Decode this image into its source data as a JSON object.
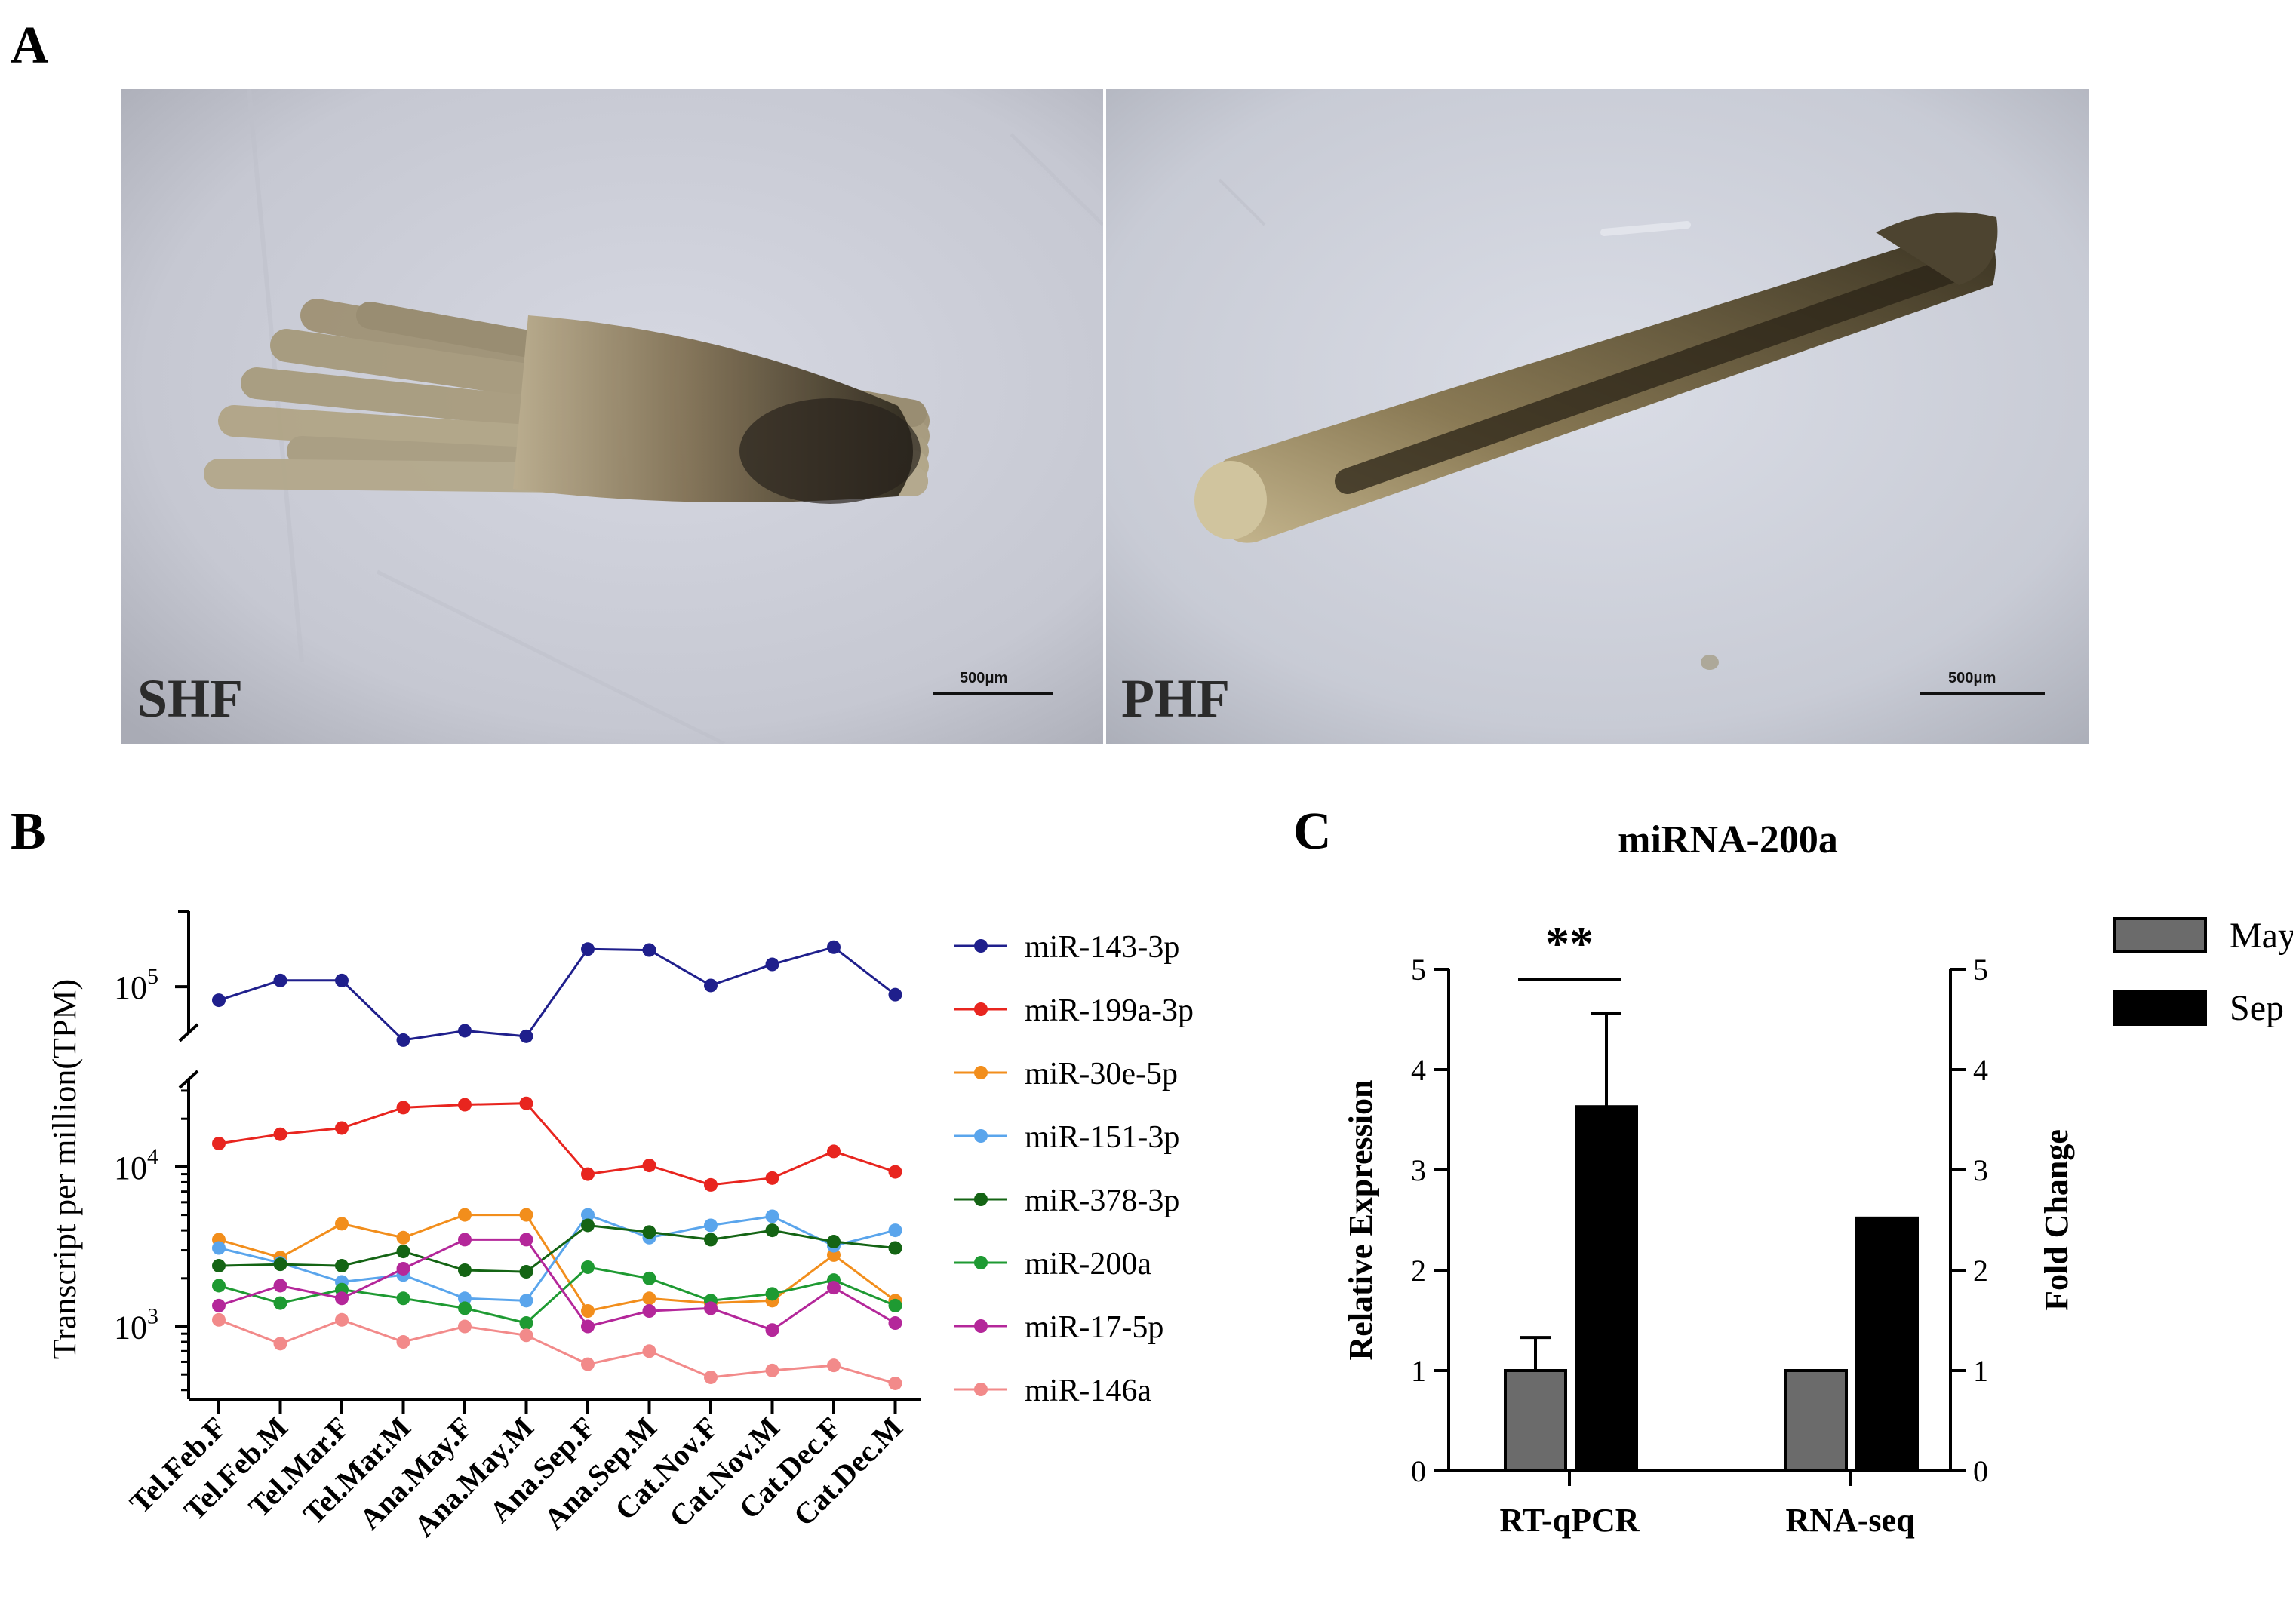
{
  "panel_a": {
    "letter": "A",
    "images": [
      {
        "label": "SHF",
        "scale_text": "500μm"
      },
      {
        "label": "PHF",
        "scale_text": "500μm"
      }
    ]
  },
  "panel_b": {
    "letter": "B"
  },
  "panel_c": {
    "letter": "C"
  },
  "chart_data": [
    {
      "type": "line",
      "panel": "B",
      "ylabel": "Transcript per million(TPM)",
      "yscale": "log",
      "ylim": [
        200,
        300000
      ],
      "y_broken_axis": true,
      "y_ticks": [
        {
          "base": "10",
          "exp": "5",
          "value": 100000
        },
        {
          "base": "10",
          "exp": "4",
          "value": 10000
        },
        {
          "base": "10",
          "exp": "3",
          "value": 1000
        }
      ],
      "categories": [
        "Tel.Feb.F",
        "Tel.Feb.M",
        "Tel.Mar.F",
        "Tel.Mar.M",
        "Ana.May.F",
        "Ana.May.M",
        "Ana.Sep.F",
        "Ana.Sep.M",
        "Cat.Nov.F",
        "Cat.Nov.M",
        "Cat.Dec.F",
        "Cat.Dec.M"
      ],
      "legend_position": "right",
      "series": [
        {
          "name": "miR-143-3p",
          "color": "#1f1f8c",
          "values": [
            90000,
            105000,
            105000,
            66000,
            71000,
            68000,
            134000,
            133000,
            101000,
            119000,
            136000,
            94000
          ]
        },
        {
          "name": "miR-199a-3p",
          "color": "#e8251f",
          "values": [
            14000,
            16000,
            17500,
            23500,
            24500,
            25000,
            9000,
            10200,
            7700,
            8500,
            12500,
            9300
          ]
        },
        {
          "name": "miR-30e-5p",
          "color": "#f28e1c",
          "values": [
            3500,
            2700,
            4400,
            3600,
            5000,
            5000,
            1250,
            1500,
            1400,
            1450,
            2800,
            1450
          ]
        },
        {
          "name": "miR-151-3p",
          "color": "#5aa5ec",
          "values": [
            3100,
            2500,
            1900,
            2100,
            1500,
            1450,
            5000,
            3600,
            4300,
            4900,
            3200,
            4000
          ]
        },
        {
          "name": "miR-378-3p",
          "color": "#146414",
          "values": [
            2400,
            2450,
            2400,
            2950,
            2250,
            2200,
            4300,
            3900,
            3500,
            4000,
            3400,
            3100
          ]
        },
        {
          "name": "miR-200a",
          "color": "#1e9a32",
          "values": [
            1800,
            1400,
            1700,
            1500,
            1300,
            1050,
            2350,
            2000,
            1450,
            1600,
            1950,
            1350
          ]
        },
        {
          "name": "miR-17-5p",
          "color": "#b4279a",
          "values": [
            1350,
            1800,
            1500,
            2300,
            3500,
            3500,
            1000,
            1250,
            1300,
            950,
            1750,
            1050
          ]
        },
        {
          "name": "miR-146a",
          "color": "#f28a8a",
          "values": [
            1100,
            780,
            1100,
            800,
            1000,
            880,
            580,
            700,
            480,
            530,
            570,
            440
          ]
        }
      ]
    },
    {
      "type": "bar",
      "panel": "C",
      "title": "miRNA-200a",
      "categories": [
        "RT-qPCR",
        "RNA-seq"
      ],
      "ylabel_left": "Relative Expression",
      "ylabel_right": "Fold Change",
      "ylim": [
        0,
        5
      ],
      "yticks": [
        0,
        1,
        2,
        3,
        4,
        5
      ],
      "legend_position": "top-right",
      "significance": "**",
      "series": [
        {
          "name": "May",
          "color": "#6b6b6b",
          "values": [
            1.0,
            1.0
          ],
          "error": [
            0.33,
            0
          ]
        },
        {
          "name": "Sep",
          "color": "#000000",
          "values": [
            3.63,
            2.52
          ],
          "error": [
            0.93,
            0
          ]
        }
      ]
    }
  ]
}
